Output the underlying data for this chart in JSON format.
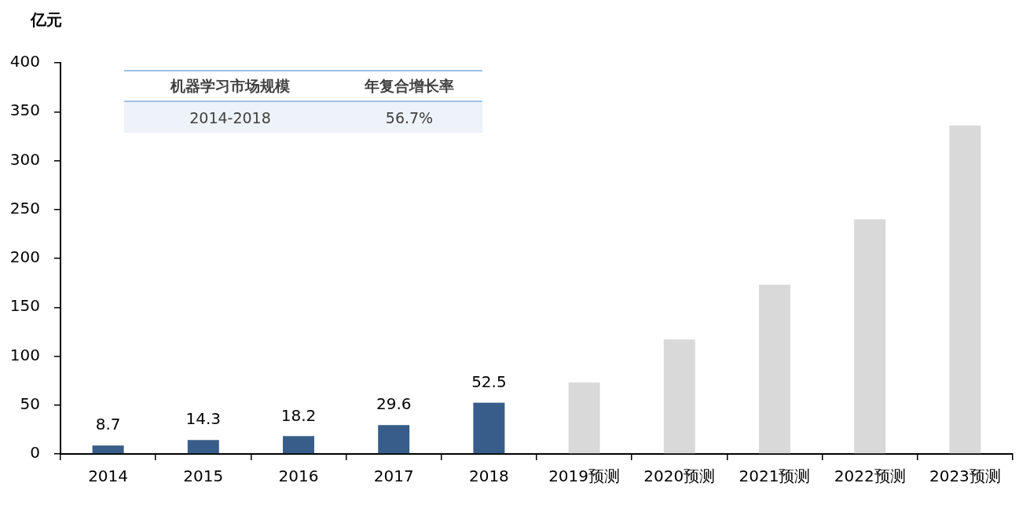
{
  "chart_data": {
    "type": "bar",
    "ylabel": "亿元",
    "categories": [
      "2014",
      "2015",
      "2016",
      "2017",
      "2018",
      "2019预测",
      "2020预测",
      "2021预测",
      "2022预测",
      "2023预测"
    ],
    "values": [
      8.7,
      14.3,
      18.2,
      29.6,
      52.5,
      73,
      117,
      173,
      240,
      336
    ],
    "colors": [
      "#385d8a",
      "#385d8a",
      "#385d8a",
      "#385d8a",
      "#385d8a",
      "#d9d9d9",
      "#d9d9d9",
      "#d9d9d9",
      "#d9d9d9",
      "#d9d9d9"
    ],
    "value_labels": [
      "8.7",
      "14.3",
      "18.2",
      "29.6",
      "52.5",
      null,
      null,
      null,
      null,
      null
    ],
    "ylim": [
      0,
      400
    ],
    "yticks": [
      0,
      50,
      100,
      150,
      200,
      250,
      300,
      350,
      400
    ],
    "grid": false,
    "legend": false,
    "annotations": [
      "机器学习市场规模",
      "年复合增长率",
      "2014-2018",
      "56.7%"
    ]
  }
}
